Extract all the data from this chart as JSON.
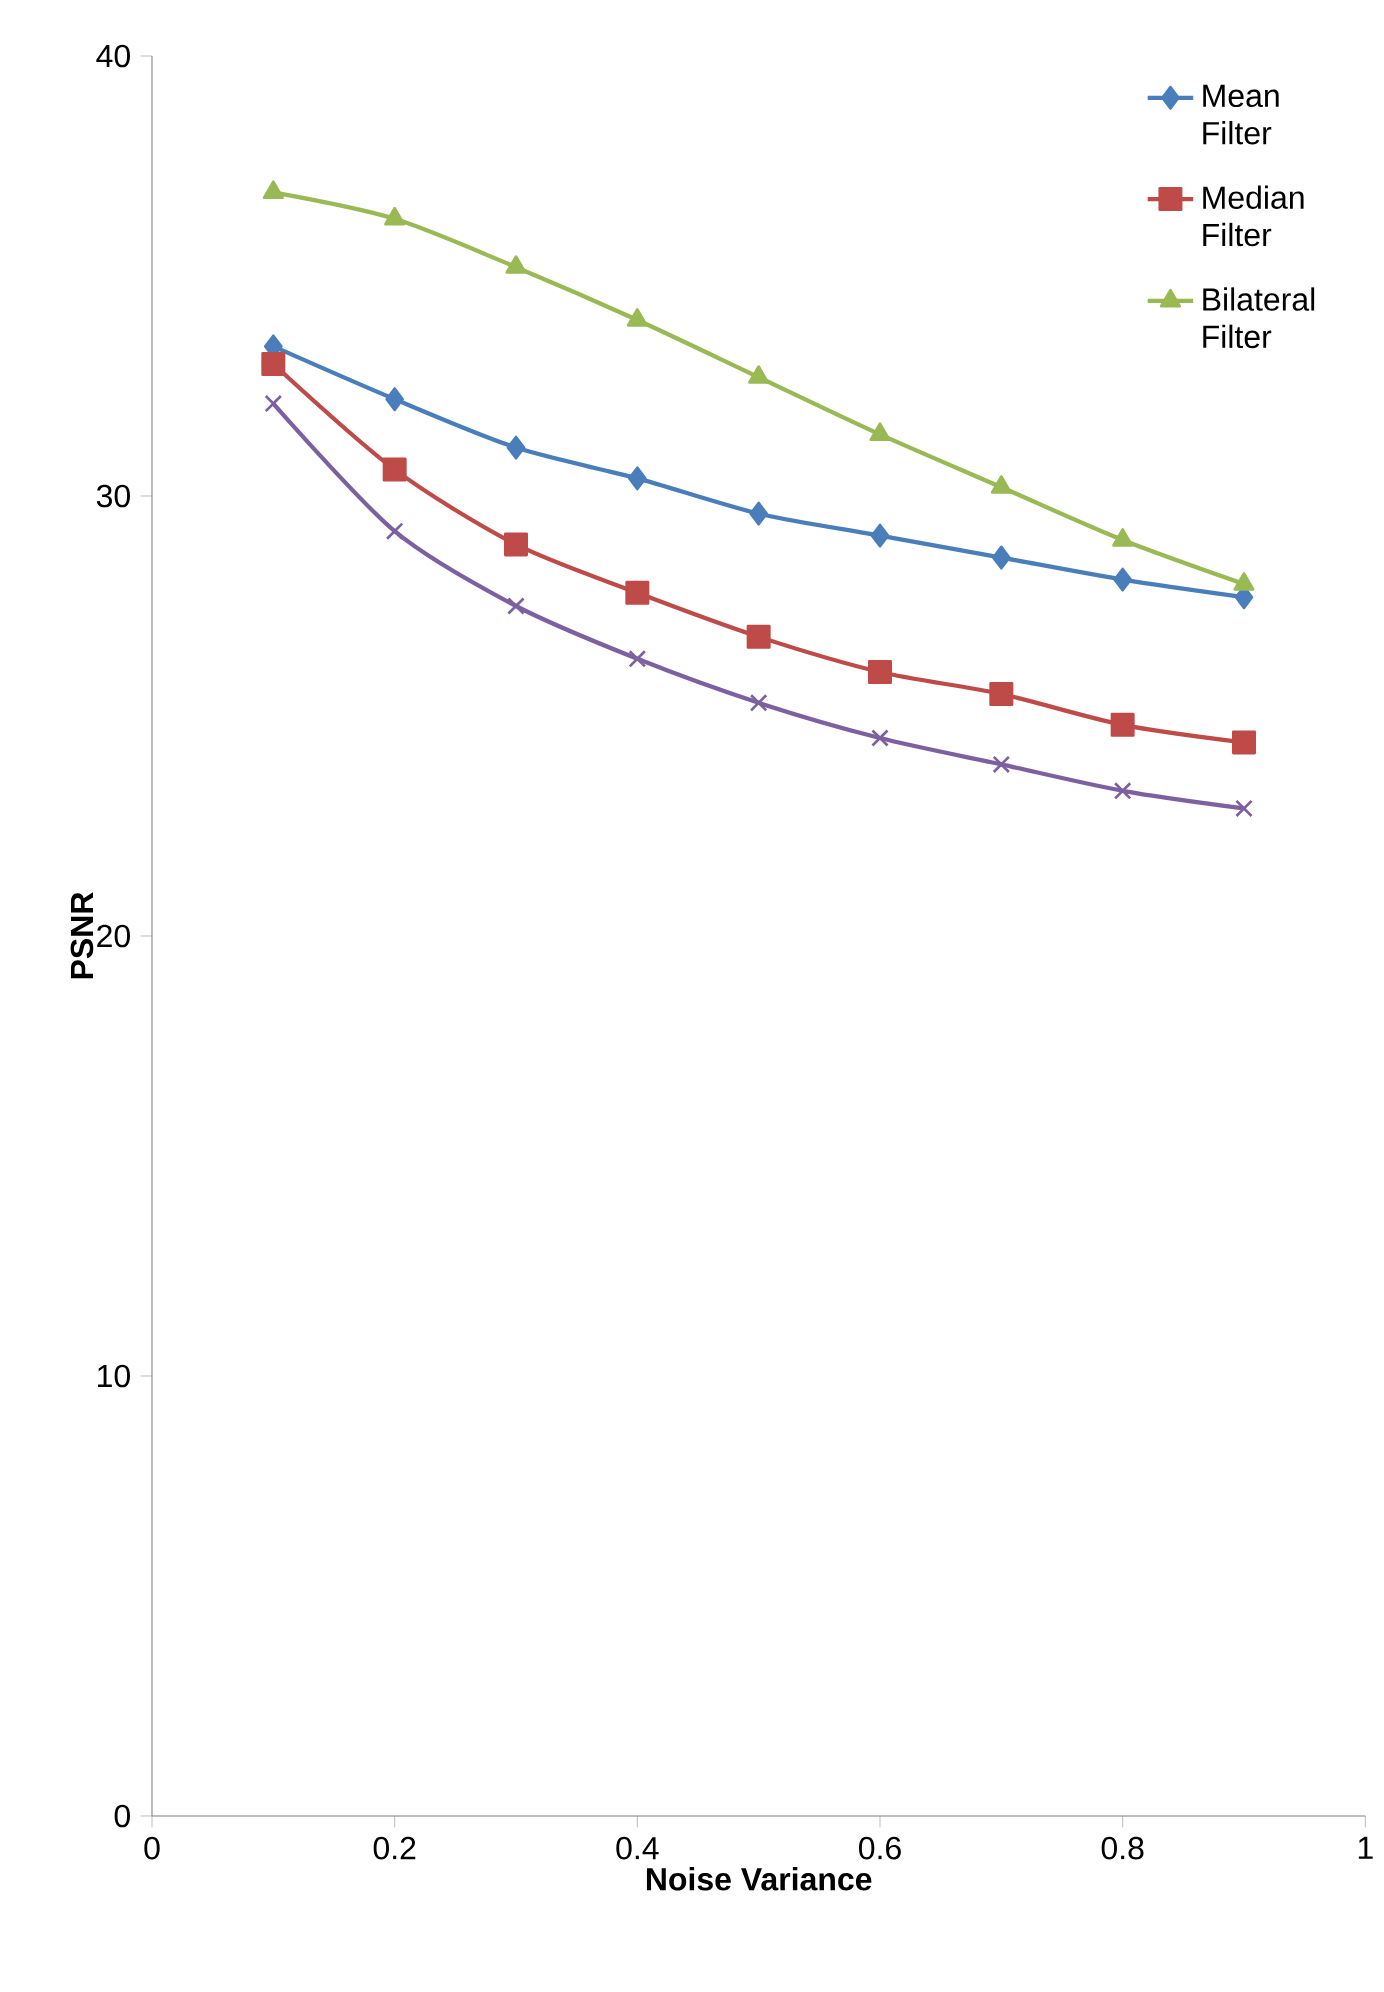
{
  "chart_data": {
    "type": "line",
    "xlabel": "Noise Variance",
    "ylabel": "PSNR",
    "x": [
      0.1,
      0.2,
      0.3,
      0.4,
      0.5,
      0.6,
      0.7,
      0.8,
      0.9
    ],
    "series": [
      {
        "name": "Mean Filter",
        "color": "#4a7ebb",
        "marker": "diamond",
        "values": [
          33.4,
          32.2,
          31.1,
          30.4,
          29.6,
          29.1,
          28.6,
          28.1,
          27.7
        ]
      },
      {
        "name": "Median Filter",
        "color": "#be4b48",
        "marker": "square",
        "values": [
          33.0,
          30.6,
          28.9,
          27.8,
          26.8,
          26.0,
          25.5,
          24.8,
          24.4
        ]
      },
      {
        "name": "Bilateral Filter",
        "color": "#98b954",
        "marker": "triangle",
        "values": [
          36.9,
          36.3,
          35.2,
          34.0,
          32.7,
          31.4,
          30.2,
          29.0,
          28.0
        ]
      },
      {
        "color": "#7d60a0",
        "marker": "cross",
        "values": [
          32.1,
          29.2,
          27.5,
          26.3,
          25.3,
          24.5,
          23.9,
          23.3,
          22.9
        ]
      }
    ],
    "xlim": [
      0,
      1
    ],
    "ylim": [
      0,
      40
    ],
    "xticks": [
      0,
      0.2,
      0.4,
      0.6,
      0.8,
      1
    ],
    "yticks": [
      0,
      10,
      20,
      30,
      40
    ],
    "grid": false,
    "legend": "top right",
    "line_style": "solid"
  }
}
